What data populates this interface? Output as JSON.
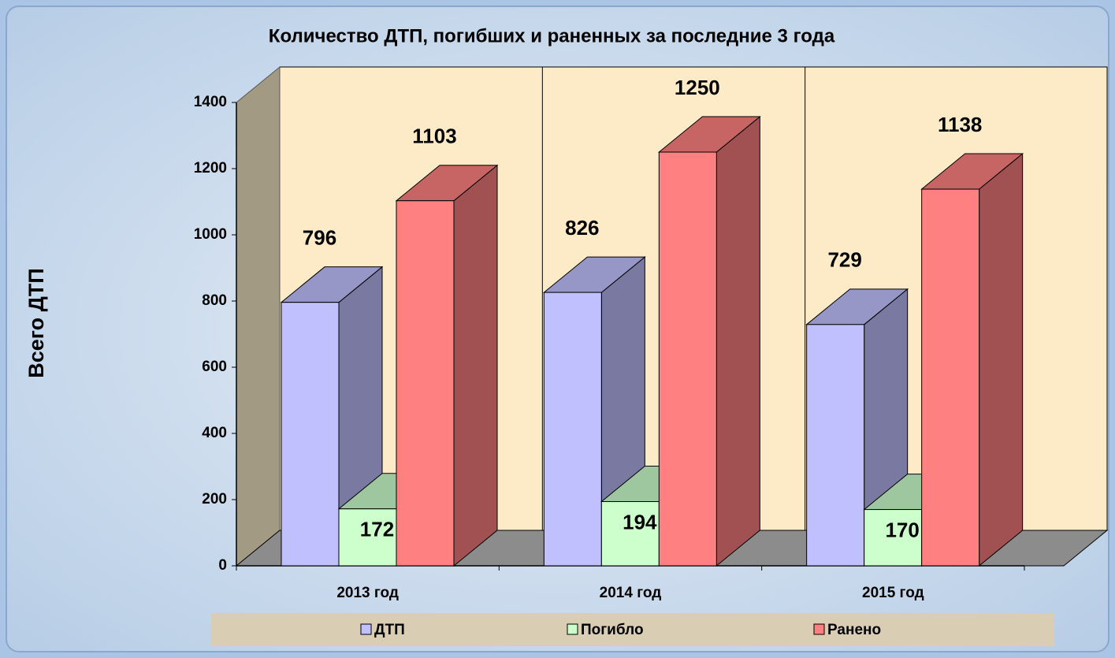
{
  "chart_data": {
    "type": "bar3d",
    "title": "Количество ДТП,  погибших и раненных за последние 3 года",
    "y_label": "Всего ДТП",
    "categories": [
      "2013 год",
      "2014 год",
      "2015 год"
    ],
    "series": [
      {
        "name": "ДТП",
        "color": "#c0c0ff",
        "values": [
          796,
          826,
          729
        ]
      },
      {
        "name": "Погибло",
        "color": "#ccffcc",
        "values": [
          172,
          194,
          170
        ]
      },
      {
        "name": "Ранено",
        "color": "#ff8080",
        "values": [
          1103,
          1250,
          1138
        ]
      }
    ],
    "ylim": [
      0,
      1400
    ],
    "yticks": [
      0,
      200,
      400,
      600,
      800,
      1000,
      1200,
      1400
    ],
    "legend": "bottom"
  }
}
